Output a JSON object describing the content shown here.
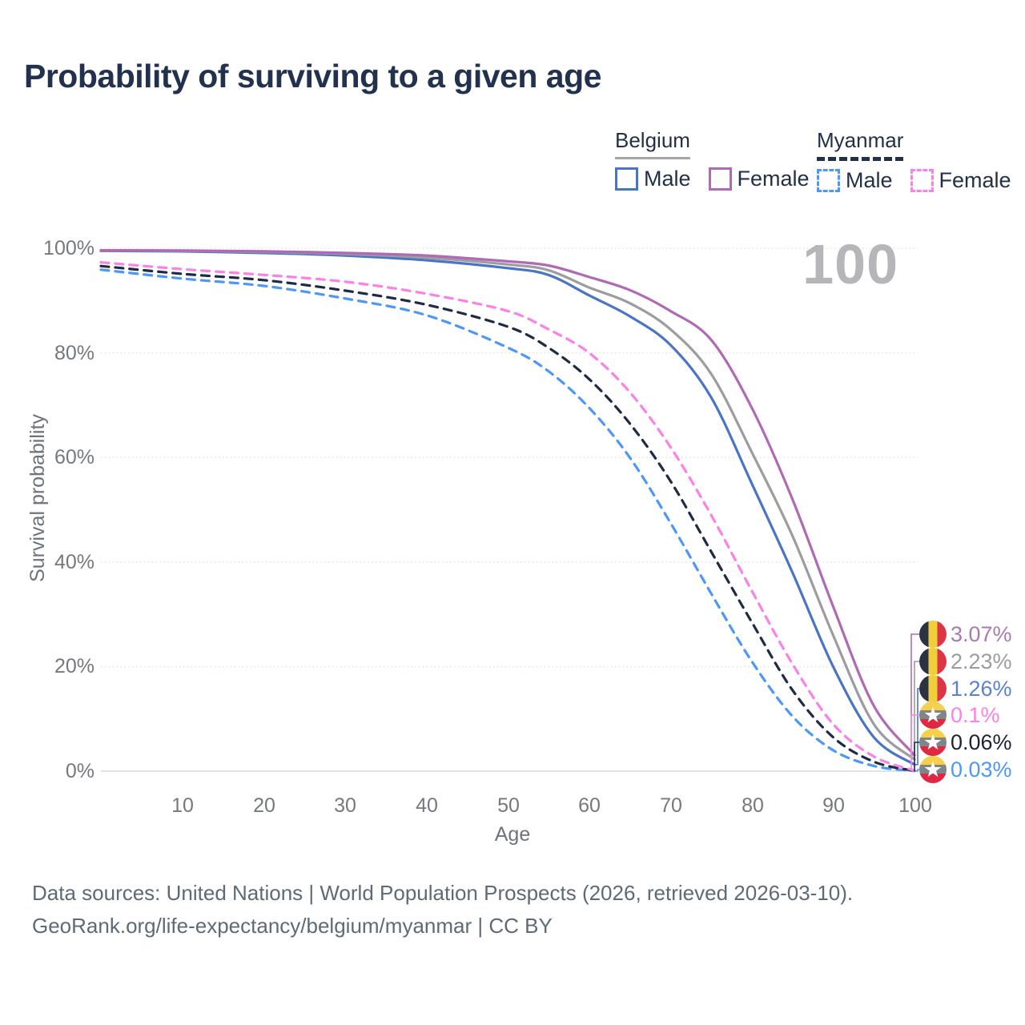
{
  "title": "Probability of surviving to a given age",
  "legend": {
    "groups": [
      {
        "label": "Belgium",
        "underline_style": "solid",
        "underline_color": "#a6a6ab",
        "items": [
          {
            "label": "Male",
            "color": "#4a74c4",
            "line_style": "solid"
          },
          {
            "label": "Female",
            "color": "#b06ab5",
            "line_style": "solid"
          }
        ]
      },
      {
        "label": "Myanmar",
        "underline_style": "dashed",
        "underline_color": "#22304d",
        "items": [
          {
            "label": "Male",
            "color": "#4d97f7",
            "line_style": "dashed"
          },
          {
            "label": "Female",
            "color": "#fb80e8",
            "line_style": "dashed"
          }
        ]
      }
    ]
  },
  "chart_data": {
    "type": "line",
    "title": "Probability of surviving to a given age",
    "xlabel": "Age",
    "ylabel": "Survival probability",
    "x_ticks": [
      "10",
      "20",
      "30",
      "40",
      "50",
      "60",
      "70",
      "80",
      "90",
      "100"
    ],
    "y_ticks": [
      "100%",
      "80%",
      "60%",
      "40%",
      "20%",
      "0%"
    ],
    "y_tick_pcts": [
      100,
      80,
      60,
      40,
      20,
      0
    ],
    "xlim": [
      0,
      100
    ],
    "ylim": [
      0,
      100
    ],
    "grid": "horizontal-dotted",
    "legend_position": "top-right",
    "watermark": "100",
    "ages": [
      0,
      10,
      20,
      30,
      40,
      50,
      55,
      60,
      65,
      70,
      75,
      80,
      85,
      90,
      95,
      100
    ],
    "series": [
      {
        "name": "Belgium Female",
        "country": "Belgium",
        "sex": "Female",
        "line_style": "solid",
        "color": "#b06ab5",
        "end_label": "3.07%",
        "values": [
          99.6,
          99.55,
          99.4,
          99.1,
          98.6,
          97.5,
          96.7,
          94.5,
          92.0,
          88.0,
          82.5,
          69.5,
          52.0,
          31.5,
          12.5,
          3.07
        ]
      },
      {
        "name": "Belgium Both sexes",
        "country": "Belgium",
        "sex": "Both",
        "line_style": "solid",
        "color": "#9c9ca1",
        "end_label": "2.23%",
        "values": [
          99.6,
          99.5,
          99.3,
          98.9,
          98.2,
          96.9,
          95.8,
          92.5,
          89.5,
          84.5,
          76.0,
          61.0,
          45.0,
          26.0,
          9.0,
          2.23
        ]
      },
      {
        "name": "Belgium Male",
        "country": "Belgium",
        "sex": "Male",
        "line_style": "solid",
        "color": "#4a74c4",
        "end_label": "1.26%",
        "values": [
          99.5,
          99.4,
          99.1,
          98.6,
          97.7,
          96.2,
          94.9,
          91.0,
          87.0,
          81.5,
          71.5,
          55.0,
          38.0,
          20.0,
          6.5,
          1.26
        ]
      },
      {
        "name": "Myanmar Female",
        "country": "Myanmar",
        "sex": "Female",
        "line_style": "dashed",
        "color": "#fb80e8",
        "end_label": "0.1%",
        "values": [
          97.3,
          96.0,
          94.9,
          93.6,
          91.3,
          88.0,
          84.5,
          80.0,
          72.5,
          62.0,
          49.0,
          34.5,
          20.5,
          9.0,
          2.8,
          0.1
        ]
      },
      {
        "name": "Myanmar Both sexes",
        "country": "Myanmar",
        "sex": "Both",
        "line_style": "dashed",
        "color": "#1d2b45",
        "end_label": "0.06%",
        "values": [
          96.6,
          95.1,
          93.9,
          91.9,
          89.2,
          85.0,
          81.0,
          75.0,
          66.5,
          55.5,
          42.0,
          28.5,
          15.5,
          6.5,
          1.8,
          0.06
        ]
      },
      {
        "name": "Myanmar Male",
        "country": "Myanmar",
        "sex": "Male",
        "line_style": "dashed",
        "color": "#4d97f7",
        "end_label": "0.03%",
        "values": [
          95.9,
          94.2,
          92.8,
          90.4,
          87.2,
          81.0,
          76.5,
          69.5,
          60.0,
          47.5,
          34.0,
          21.0,
          10.5,
          4.0,
          1.0,
          0.03
        ]
      }
    ]
  },
  "end_labels": [
    {
      "value": "3.07%",
      "flag": "belgium-flag",
      "color": "#ab79b2"
    },
    {
      "value": "2.23%",
      "flag": "belgium-flag",
      "color": "#9c9ca1"
    },
    {
      "value": "1.26%",
      "flag": "belgium-flag",
      "color": "#5b82cd"
    },
    {
      "value": "0.1%",
      "flag": "myanmar-flag",
      "color": "#fb80e8"
    },
    {
      "value": "0.06%",
      "flag": "myanmar-flag",
      "color": "#1b2433"
    },
    {
      "value": "0.03%",
      "flag": "myanmar-flag",
      "color": "#4d97f7"
    }
  ],
  "footer": {
    "line1": "Data sources: United Nations | World Population Prospects (2026, retrieved 2026-03-10).",
    "line2": "GeoRank.org/life-expectancy/belgium/myanmar | CC BY"
  }
}
